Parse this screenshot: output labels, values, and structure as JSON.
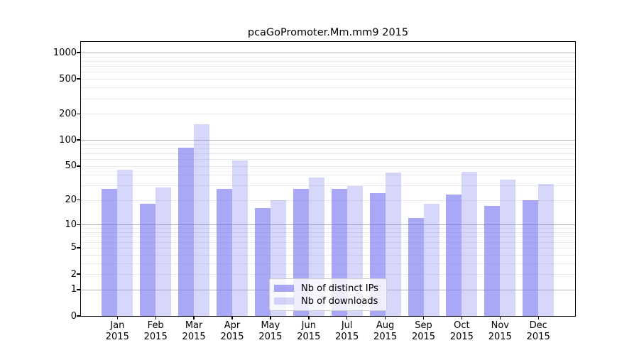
{
  "chart_data": {
    "type": "bar",
    "title": "pcaGoPromoter.Mm.mm9 2015",
    "y_scale": "log10(1+value)",
    "ylim": [
      0,
      1320
    ],
    "grid": "on",
    "legend_position": "inside-bottom-center",
    "categories": [
      "Jan",
      "Feb",
      "Mar",
      "Apr",
      "May",
      "Jun",
      "Jul",
      "Aug",
      "Sep",
      "Oct",
      "Nov",
      "Dec"
    ],
    "category_year": "2015",
    "yticks": [
      0,
      1,
      2,
      5,
      10,
      20,
      50,
      100,
      200,
      500,
      1000
    ],
    "series": [
      {
        "name": "Nb of distinct IPs",
        "color": "rgba(121,121,241,0.65)",
        "values": [
          27,
          18,
          82,
          27,
          16,
          27,
          27,
          24,
          12,
          23,
          17,
          20
        ]
      },
      {
        "name": "Nb of downloads",
        "color": "rgba(121,121,241,0.30)",
        "values": [
          45,
          28,
          153,
          58,
          20,
          37,
          29,
          42,
          18,
          43,
          35,
          31
        ]
      }
    ],
    "colors": {
      "major_grid": "#b3b3b3",
      "minor_grid": "#e9e9e9",
      "axis": "#000000"
    }
  }
}
